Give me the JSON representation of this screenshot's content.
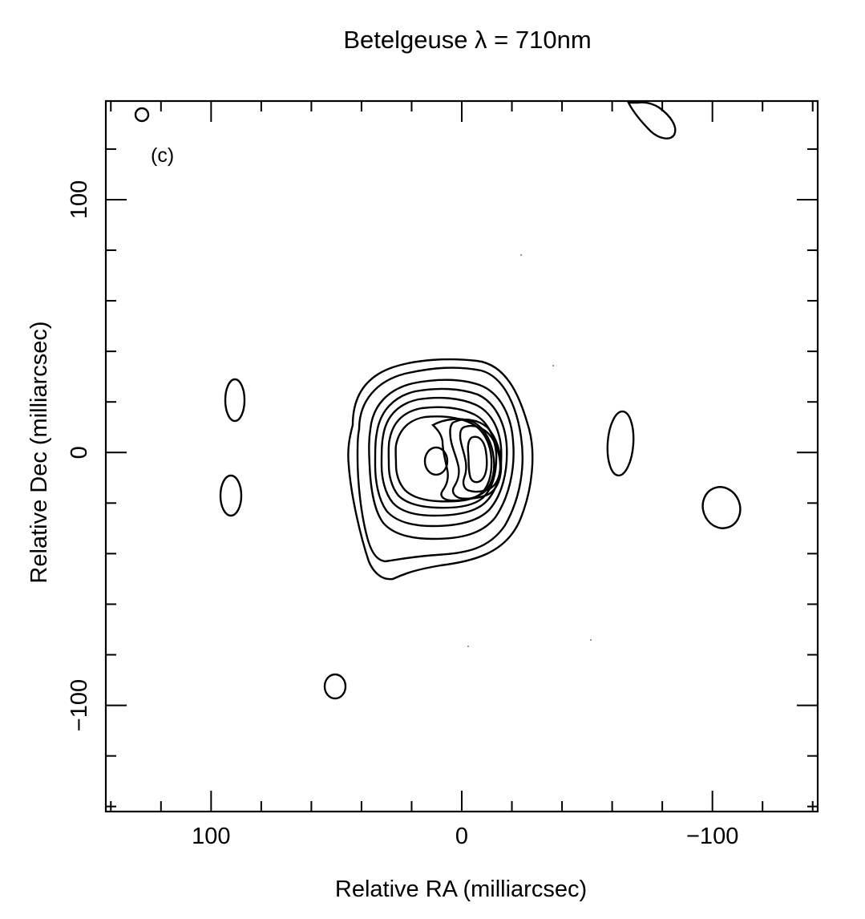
{
  "chart_data": {
    "type": "contour",
    "title": "Betelgeuse λ = 710nm",
    "xlabel": "Relative RA (milliarcsec)",
    "ylabel": "Relative Dec (milliarcsec)",
    "panel_label": "(c)",
    "x_axis_reversed": true,
    "xlim": [
      142,
      -142
    ],
    "ylim": [
      -142,
      139
    ],
    "x_major_ticks": [
      100,
      0,
      -100
    ],
    "x_tick_labels": [
      "100",
      "0",
      "−100"
    ],
    "y_major_ticks": [
      100,
      0,
      -100
    ],
    "y_tick_labels": [
      "100",
      "0",
      "−100"
    ],
    "minor_tick_step": 20,
    "grid": false,
    "central_source": {
      "center": [
        0,
        0
      ],
      "contour_count": 11,
      "outermost_extent": {
        "ra": [
          43,
          -27
        ],
        "dec": [
          -50,
          38
        ]
      },
      "secondary_peaks": [
        {
          "ra": 10,
          "dec": -2
        },
        {
          "ra": -7,
          "dec": -2
        }
      ]
    },
    "features": [
      {
        "type": "small-contour",
        "ra": 89,
        "dec": 21
      },
      {
        "type": "small-contour",
        "ra": 91,
        "dec": -17
      },
      {
        "type": "small-contour",
        "ra": 49,
        "dec": -92
      },
      {
        "type": "small-contour",
        "ra": 126,
        "dec": 134
      },
      {
        "type": "small-contour",
        "ra": -64,
        "dec": 5
      },
      {
        "type": "small-contour",
        "ra": -104,
        "dec": -21
      },
      {
        "type": "small-contour",
        "ra": -76,
        "dec": 133
      }
    ]
  }
}
